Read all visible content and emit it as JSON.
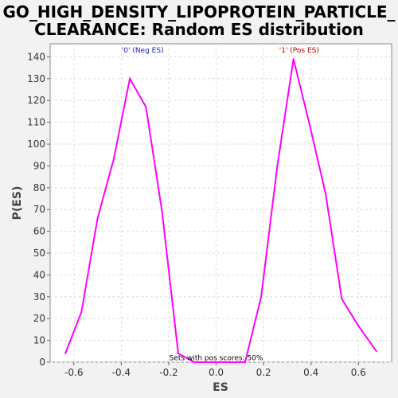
{
  "chart_data": {
    "type": "line",
    "title_line1": "GO_HIGH_DENSITY_LIPOPROTEIN_PARTICLE_",
    "title_line2": "CLEARANCE: Random ES distribution",
    "xlabel": "ES",
    "ylabel": "P(ES)",
    "xlim": [
      -0.7,
      0.74
    ],
    "ylim": [
      0,
      146
    ],
    "x_ticks": [
      -0.6,
      -0.4,
      -0.2,
      0.0,
      0.2,
      0.4,
      0.6
    ],
    "x_tick_labels": [
      "-0.6",
      "-0.4",
      "-0.2",
      "0.0",
      "0.2",
      "0.4",
      "0.6"
    ],
    "y_ticks": [
      0,
      10,
      20,
      30,
      40,
      50,
      60,
      70,
      80,
      90,
      100,
      110,
      120,
      130,
      140
    ],
    "y_tick_labels": [
      "0",
      "10",
      "20",
      "30",
      "40",
      "50",
      "60",
      "70",
      "80",
      "90",
      "100",
      "110",
      "120",
      "130",
      "140"
    ],
    "grid": true,
    "line_color": "#ff00ff",
    "series": [
      {
        "x": [
          -0.636,
          -0.568,
          -0.5,
          -0.432,
          -0.364,
          -0.296,
          -0.228,
          -0.16,
          -0.092,
          -0.024,
          0.044,
          0.122,
          0.19,
          0.258,
          0.326,
          0.394,
          0.462,
          0.53,
          0.598,
          0.676
        ],
        "values": [
          4,
          23,
          66,
          93,
          130,
          117,
          69,
          4,
          0,
          0,
          0,
          0,
          30,
          90,
          139,
          109,
          77,
          29,
          17,
          5
        ]
      }
    ],
    "annotations": [
      {
        "text": "'0' (Neg ES)",
        "x": -0.31,
        "y": 142,
        "color": "#2222bb"
      },
      {
        "text": "'1' (Pos ES)",
        "x": 0.35,
        "y": 142,
        "color": "#cc0000"
      },
      {
        "text": "Sets with pos scores: 50%",
        "x": 0.0,
        "y": 1,
        "color": "#000000"
      }
    ]
  }
}
